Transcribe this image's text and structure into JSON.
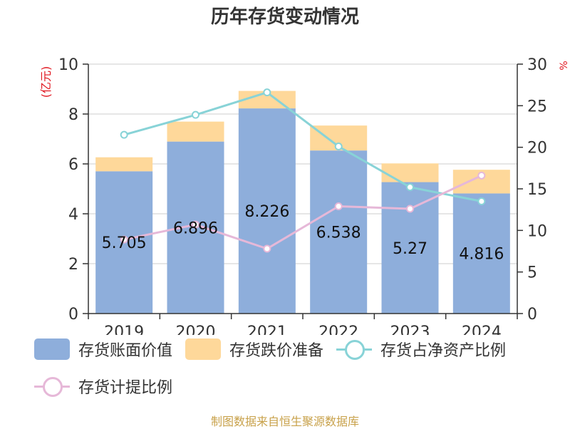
{
  "chart_data": {
    "type": "bar",
    "title": "历年存货变动情况",
    "categories": [
      "2019",
      "2020",
      "2021",
      "2022",
      "2023",
      "2024"
    ],
    "left_axis": {
      "label": "(亿元)",
      "ylim": [
        0,
        10
      ],
      "ticks": [
        "0",
        "2",
        "4",
        "6",
        "8",
        "10"
      ]
    },
    "right_axis": {
      "label": "%",
      "ylim": [
        0,
        30
      ],
      "ticks": [
        "0",
        "5",
        "10",
        "15",
        "20",
        "25",
        "30"
      ]
    },
    "series": [
      {
        "name": "存货账面价值",
        "kind": "bar",
        "stack": "inventory",
        "color": "#8eaedb",
        "values": [
          5.705,
          6.896,
          8.226,
          6.538,
          5.27,
          4.816
        ],
        "labels": [
          "5.705",
          "6.896",
          "8.226",
          "6.538",
          "5.27",
          "4.816"
        ]
      },
      {
        "name": "存货跌价准备",
        "kind": "bar",
        "stack": "inventory",
        "color": "#fed89a",
        "values": [
          0.56,
          0.8,
          0.7,
          1.0,
          0.75,
          0.95
        ]
      },
      {
        "name": "存货占净资产比例",
        "kind": "line",
        "axis": "right",
        "color": "#88d3d7",
        "values": [
          21.5,
          23.9,
          26.6,
          20.1,
          15.2,
          13.5
        ]
      },
      {
        "name": "存货计提比例",
        "kind": "line",
        "axis": "right",
        "color": "#e6b8d8",
        "values": [
          8.9,
          10.7,
          7.8,
          12.9,
          12.6,
          16.6
        ]
      }
    ],
    "grid": true
  },
  "source": "制图数据来自恒生聚源数据库"
}
